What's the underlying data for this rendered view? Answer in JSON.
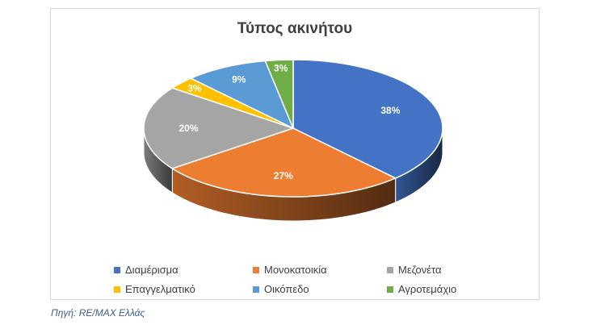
{
  "chart_data": {
    "type": "pie",
    "title": "Τύπος ακινήτου",
    "categories": [
      "Διαμέρισμα",
      "Μονοκατοικία",
      "Μεζονέτα",
      "Επαγγελματικό",
      "Οικόπεδο",
      "Αγροτεμάχιο"
    ],
    "values": [
      38,
      27,
      20,
      3,
      9,
      3
    ],
    "labels": [
      "38%",
      "27%",
      "20%",
      "3%",
      "9%",
      "3%"
    ],
    "colors": [
      "#4472c4",
      "#ed7d31",
      "#a5a5a5",
      "#ffc000",
      "#5b9bd5",
      "#70ad47"
    ],
    "three_d": true,
    "legend_position": "bottom"
  },
  "source_note": "Πηγή: RE/MAX Ελλάς"
}
